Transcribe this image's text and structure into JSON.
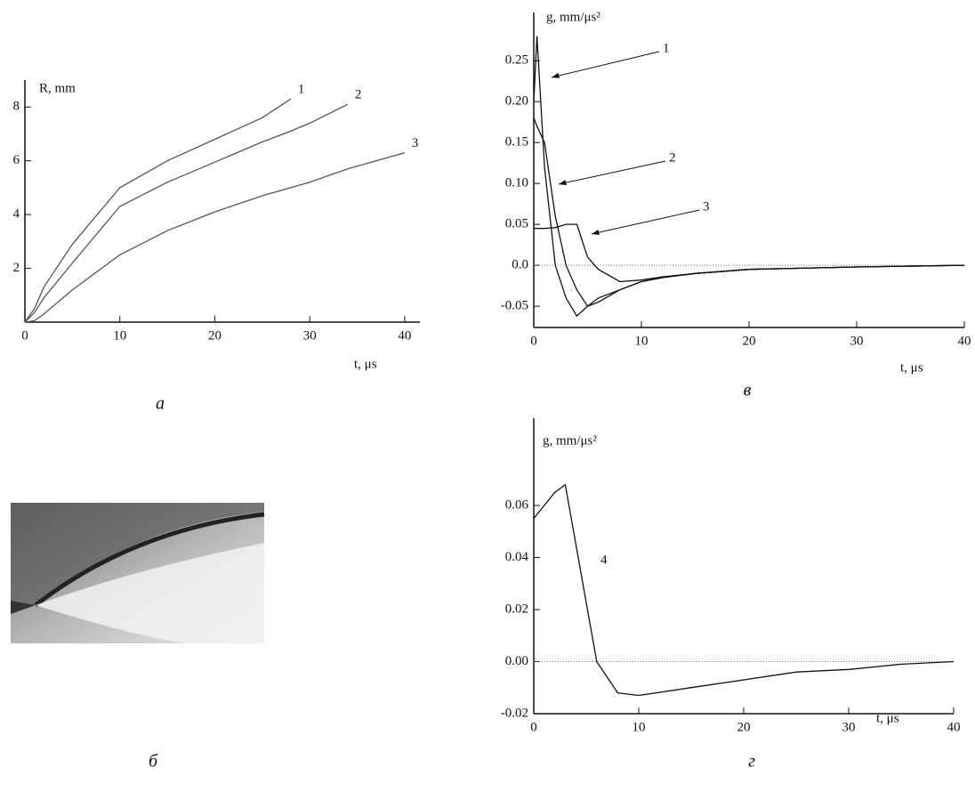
{
  "chart_data": [
    {
      "type": "line",
      "panel_label": "а",
      "y_label": "R, mm",
      "x_label": "t,  μs",
      "x": [
        0,
        1,
        2,
        5,
        10,
        15,
        20,
        25,
        28,
        30,
        34,
        40
      ],
      "series": [
        {
          "name": "1",
          "color": "#555555",
          "values": [
            0,
            0.5,
            1.3,
            2.9,
            5.0,
            6.0,
            6.8,
            7.6,
            8.3,
            null,
            null,
            null
          ]
        },
        {
          "name": "2",
          "color": "#555555",
          "values": [
            0,
            0.35,
            0.9,
            2.2,
            4.3,
            5.2,
            5.95,
            6.7,
            7.1,
            7.4,
            8.1,
            null
          ]
        },
        {
          "name": "3",
          "color": "#555555",
          "values": [
            0,
            0.05,
            0.3,
            1.2,
            2.5,
            3.4,
            4.1,
            4.7,
            5.0,
            5.2,
            5.7,
            6.3
          ]
        }
      ],
      "xlim": [
        0,
        41.6
      ],
      "ylim": [
        0,
        9
      ],
      "xticks": [
        0,
        10,
        20,
        30,
        40
      ],
      "yticks": [
        2,
        4,
        6,
        8
      ],
      "zero_line": false
    },
    {
      "type": "line",
      "panel_label": "в",
      "y_label": "g,  mm/μs²",
      "x_label": "t,  μs",
      "x": [
        0,
        0.3,
        1,
        2,
        3,
        4,
        5,
        6,
        8,
        10,
        12,
        15,
        20,
        30,
        40
      ],
      "series": [
        {
          "name": "1",
          "color": "#111111",
          "values": [
            0.2,
            0.28,
            0.12,
            0.0,
            -0.04,
            -0.062,
            -0.05,
            -0.04,
            -0.03,
            -0.02,
            -0.015,
            -0.01,
            -0.005,
            -0.002,
            0
          ]
        },
        {
          "name": "2",
          "color": "#111111",
          "values": [
            0.18,
            0.17,
            0.15,
            0.06,
            0.0,
            -0.03,
            -0.05,
            -0.045,
            -0.03,
            -0.02,
            -0.015,
            -0.01,
            -0.005,
            -0.002,
            0
          ]
        },
        {
          "name": "3",
          "color": "#111111",
          "values": [
            0.045,
            0.045,
            0.045,
            0.046,
            0.05,
            0.05,
            0.01,
            -0.005,
            -0.02,
            -0.018,
            -0.014,
            -0.01,
            -0.005,
            -0.002,
            0
          ]
        }
      ],
      "xlim": [
        0,
        40
      ],
      "ylim": [
        -0.076,
        0.309
      ],
      "xticks": [
        0,
        10,
        20,
        30,
        40
      ],
      "yticks": [
        -0.05,
        {
          "value": 0,
          "label": "0.0"
        },
        0.05,
        {
          "value": 0.1,
          "label": "0.10"
        },
        0.15,
        {
          "value": 0.2,
          "label": "0.20"
        },
        0.25
      ],
      "zero_line": true
    },
    {
      "type": "line",
      "panel_label": "г",
      "y_label": "g,  mm/μs²",
      "x_label": "t, μs",
      "x": [
        0,
        2,
        3,
        6,
        8,
        10,
        15,
        20,
        25,
        30,
        35,
        40
      ],
      "series": [
        {
          "name": "4",
          "color": "#111111",
          "values": [
            0.055,
            0.065,
            0.068,
            0.0,
            -0.012,
            -0.013,
            -0.01,
            -0.007,
            -0.004,
            -0.003,
            -0.001,
            0
          ]
        }
      ],
      "xlim": [
        0,
        40
      ],
      "ylim": [
        -0.02,
        0.0935
      ],
      "xticks": [
        0,
        10,
        20,
        30,
        40
      ],
      "yticks": [
        -0.02,
        {
          "value": 0,
          "label": "0.00"
        },
        0.02,
        0.04,
        0.06
      ],
      "zero_line": true
    }
  ],
  "photo": {
    "label": "б"
  }
}
